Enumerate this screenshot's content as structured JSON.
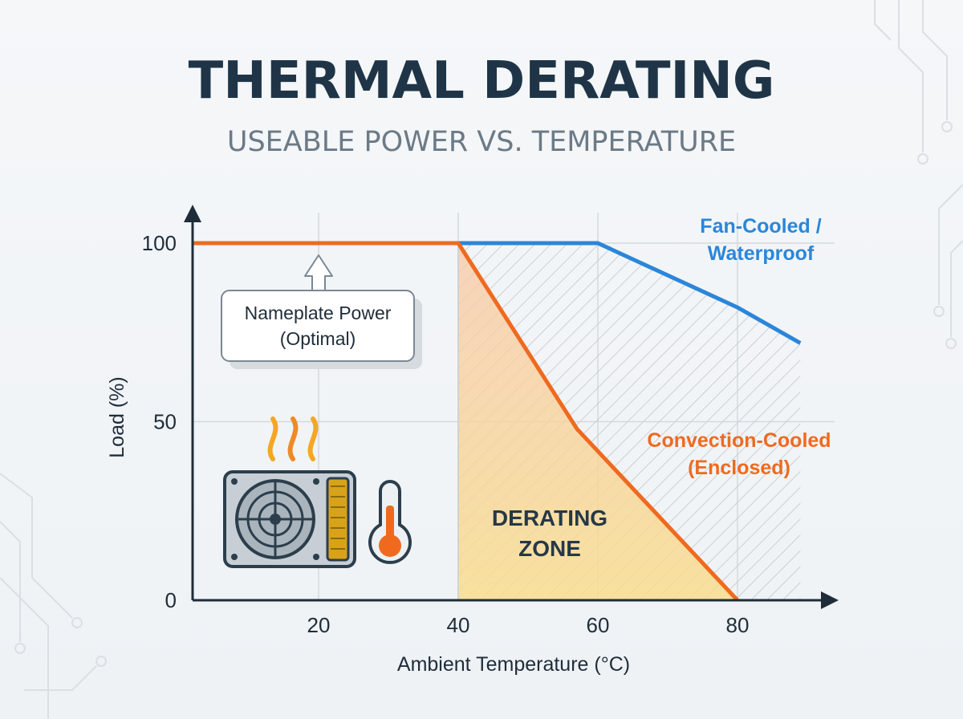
{
  "chart_data": {
    "type": "line",
    "title": "THERMAL DERATING",
    "subtitle": "USEABLE POWER VS. TEMPERATURE",
    "xlabel": "Ambient Temperature (°C)",
    "ylabel": "Load (%)",
    "xlim": [
      2,
      90
    ],
    "ylim": [
      0,
      100
    ],
    "x_ticks": [
      20,
      40,
      60,
      80
    ],
    "y_ticks": [
      0,
      50,
      100
    ],
    "grid": true,
    "series": [
      {
        "name": "Fan-Cooled / Waterproof",
        "label_lines": [
          "Fan-Cooled /",
          "Waterproof"
        ],
        "color": "#2b86d9",
        "x": [
          2,
          60,
          80,
          89
        ],
        "y": [
          100,
          100,
          82,
          72
        ]
      },
      {
        "name": "Convection-Cooled (Enclosed)",
        "label_lines": [
          "Convection-Cooled",
          "(Enclosed)"
        ],
        "color": "#ef6a1f",
        "x": [
          2,
          40,
          57,
          80
        ],
        "y": [
          100,
          100,
          48,
          0
        ]
      }
    ],
    "annotations": [
      {
        "text_lines": [
          "Nameplate Power",
          "(Optimal)"
        ],
        "points_to": {
          "x": 20,
          "y": 100
        }
      },
      {
        "text_lines": [
          "DERATING",
          "ZONE"
        ],
        "region_x": [
          40,
          80
        ]
      }
    ],
    "icons": [
      "power-supply-icon",
      "heat-waves-icon",
      "thermometer-icon"
    ]
  }
}
